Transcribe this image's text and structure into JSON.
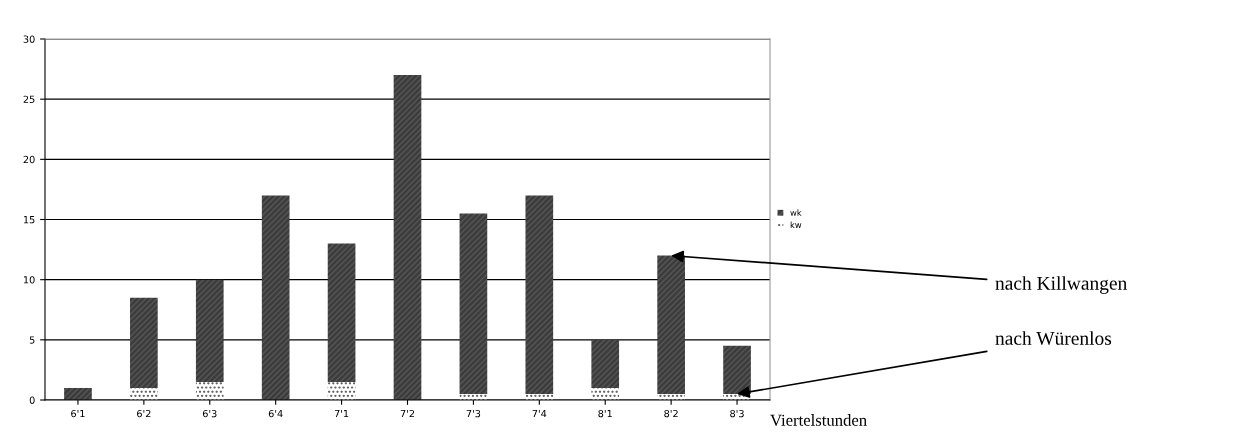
{
  "chart_data": {
    "type": "bar",
    "stacked": true,
    "categories": [
      "6'1",
      "6'2",
      "6'3",
      "6'4",
      "7'1",
      "7'2",
      "7'3",
      "7'4",
      "8'1",
      "8'2",
      "8'3"
    ],
    "series": [
      {
        "name": "kw",
        "color": "#ffffff",
        "values": [
          0,
          1,
          1.5,
          0,
          1.5,
          0,
          0.5,
          0.5,
          1,
          0.5,
          0.5
        ]
      },
      {
        "name": "wk",
        "color": "#3c3c3c",
        "values": [
          1,
          7.5,
          8.5,
          17,
          11.5,
          27,
          15,
          16.5,
          4,
          11.5,
          4
        ]
      }
    ],
    "xlabel": "Viertelstunden",
    "ylim": [
      0,
      30
    ],
    "yticks": [
      0,
      5,
      10,
      15,
      20,
      25,
      30
    ],
    "grid": "y",
    "legend": "right",
    "annotations": [
      {
        "text": "nach Killwangen",
        "x": "8'2",
        "y": 12
      },
      {
        "text": "nach Würenlos",
        "x": "8'3",
        "y": 0.5
      }
    ]
  }
}
